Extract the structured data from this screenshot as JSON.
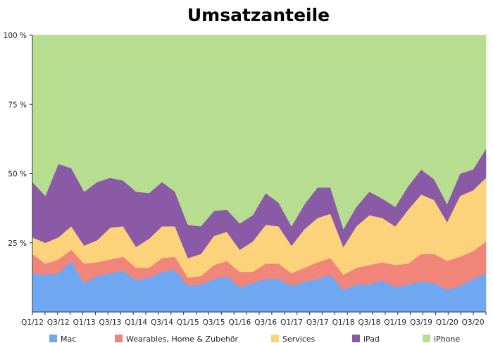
{
  "chart_data": {
    "type": "area",
    "stacked": true,
    "title": "Umsatzanteile",
    "xlabel": "",
    "ylabel": "",
    "ylim": [
      0,
      100
    ],
    "y_ticks": [
      "25 %",
      "50 %",
      "75 %",
      "100 %"
    ],
    "y_tick_values": [
      25,
      50,
      75,
      100
    ],
    "grid": false,
    "legend_position": "bottom",
    "x_tick_labels": [
      "Q1/12",
      "Q3/12",
      "Q1/13",
      "Q3/13",
      "Q1/14",
      "Q3/14",
      "Q1/15",
      "Q3/15",
      "Q1/16",
      "Q3/16",
      "Q1/17",
      "Q3/17",
      "Q1/18",
      "Q3/18",
      "Q1/19",
      "Q3/19",
      "Q1/20",
      "Q3/20"
    ],
    "categories": [
      "Q1/12",
      "Q2/12",
      "Q3/12",
      "Q4/12",
      "Q1/13",
      "Q2/13",
      "Q3/13",
      "Q4/13",
      "Q1/14",
      "Q2/14",
      "Q3/14",
      "Q4/14",
      "Q1/15",
      "Q2/15",
      "Q3/15",
      "Q4/15",
      "Q1/16",
      "Q2/16",
      "Q3/16",
      "Q4/16",
      "Q1/17",
      "Q2/17",
      "Q3/17",
      "Q4/17",
      "Q1/18",
      "Q2/18",
      "Q3/18",
      "Q4/18",
      "Q1/19",
      "Q2/19",
      "Q3/19",
      "Q4/19",
      "Q1/20",
      "Q2/20",
      "Q3/20",
      "Q4/20"
    ],
    "series": [
      {
        "name": "Mac",
        "color": "#6fa8f0",
        "values": [
          14,
          13.5,
          14,
          18.5,
          10.5,
          13,
          14,
          15,
          11.5,
          12.5,
          14.5,
          15.5,
          9.5,
          10,
          12,
          13,
          9,
          10.5,
          12,
          12,
          9.5,
          11,
          12,
          13.5,
          8,
          10,
          10,
          11.5,
          9,
          10,
          11,
          10.5,
          8,
          9.5,
          12,
          14
        ]
      },
      {
        "name": "Wearables, Home & Zubehör",
        "color": "#f2857a",
        "values": [
          7,
          4,
          5,
          4,
          7,
          5,
          5,
          5,
          4.5,
          3.5,
          5,
          4.5,
          3,
          3,
          5,
          5.5,
          5.5,
          4,
          5.5,
          5.5,
          4.5,
          5,
          6,
          6,
          5.5,
          6,
          7,
          6.5,
          8,
          7.5,
          10,
          10.5,
          10.5,
          10.5,
          10,
          11.5
        ]
      },
      {
        "name": "Services",
        "color": "#fcd37a",
        "values": [
          6,
          7.5,
          8,
          8.5,
          6.5,
          8,
          11.5,
          11,
          7.5,
          10.5,
          11.5,
          11,
          7,
          8,
          10.5,
          10.5,
          8,
          11,
          14,
          13.5,
          10,
          14,
          16,
          16,
          10,
          15,
          18,
          16,
          14,
          19.5,
          21.5,
          19.5,
          14,
          22,
          22,
          23
        ]
      },
      {
        "name": "iPad",
        "color": "#8b5aa6",
        "values": [
          20,
          17,
          26.5,
          21,
          19.5,
          21,
          18,
          16.5,
          20,
          16.5,
          16,
          12.5,
          12,
          10,
          9,
          8,
          9.5,
          9.5,
          11.5,
          8.5,
          7,
          9,
          11,
          9.5,
          6.5,
          7,
          8.5,
          7,
          7,
          8.5,
          9,
          7.5,
          6.5,
          8,
          7.5,
          10.5
        ]
      },
      {
        "name": "iPhone",
        "color": "#b6dd90",
        "values": [
          53,
          58,
          46.5,
          48,
          56.5,
          53,
          51.5,
          52.5,
          56.5,
          57,
          53,
          56.5,
          68.5,
          69,
          63.5,
          63,
          68,
          65,
          57,
          60.5,
          69,
          61,
          55,
          55,
          70,
          62,
          56.5,
          59,
          62,
          54.5,
          48.5,
          52,
          61,
          50,
          48.5,
          41
        ]
      }
    ]
  }
}
